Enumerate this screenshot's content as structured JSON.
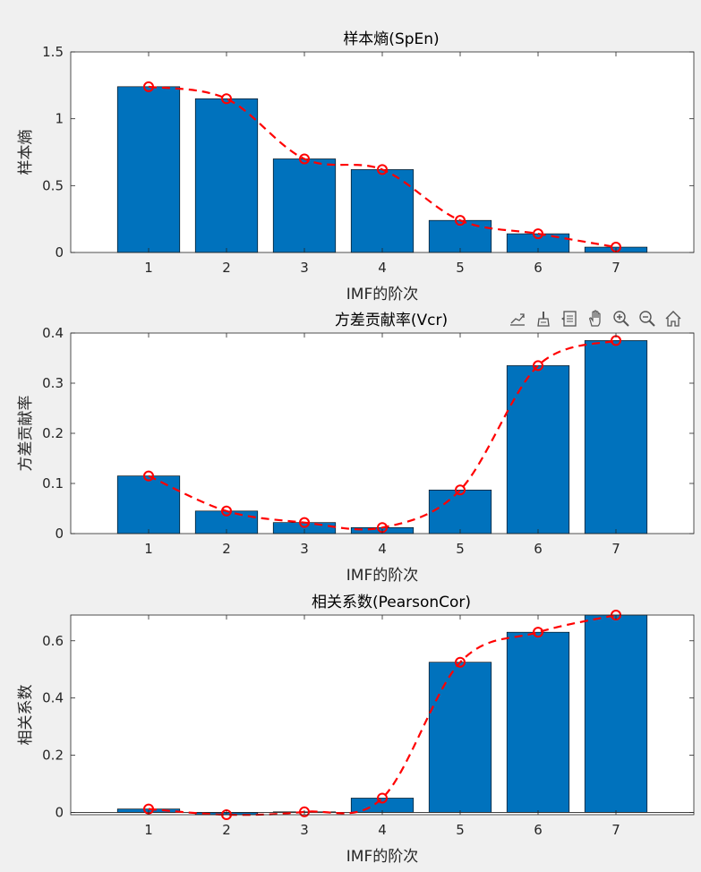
{
  "xlabel": "IMF的阶次",
  "colors": {
    "bar": "#0072BD",
    "line": "#FF0000",
    "background": "#F0F0F0",
    "axes": "#FFFFFF"
  },
  "toolbar": [
    "export-icon",
    "brush-icon",
    "datatip-icon",
    "pan-icon",
    "zoom-in-icon",
    "zoom-out-icon",
    "home-icon"
  ],
  "chart_data": [
    {
      "type": "bar",
      "title": "样本熵(SpEn)",
      "ylabel": "样本熵",
      "xlabel": "IMF的阶次",
      "categories": [
        "1",
        "2",
        "3",
        "4",
        "5",
        "6",
        "7"
      ],
      "values": [
        1.24,
        1.15,
        0.7,
        0.62,
        0.24,
        0.14,
        0.04
      ],
      "line_values": [
        1.24,
        1.15,
        0.7,
        0.62,
        0.24,
        0.14,
        0.04
      ],
      "xlim": [
        0,
        8
      ],
      "ylim": [
        0,
        1.5
      ],
      "yticks": [
        0,
        0.5,
        1,
        1.5
      ],
      "ytick_labels": [
        "0",
        "0.5",
        "1",
        "1.5"
      ]
    },
    {
      "type": "bar",
      "title": "方差贡献率(Vcr)",
      "ylabel": "方差贡献率",
      "xlabel": "IMF的阶次",
      "categories": [
        "1",
        "2",
        "3",
        "4",
        "5",
        "6",
        "7"
      ],
      "values": [
        0.115,
        0.045,
        0.022,
        0.012,
        0.087,
        0.335,
        0.385
      ],
      "line_values": [
        0.115,
        0.045,
        0.022,
        0.012,
        0.087,
        0.335,
        0.385
      ],
      "xlim": [
        0,
        8
      ],
      "ylim": [
        0,
        0.4
      ],
      "yticks": [
        0,
        0.1,
        0.2,
        0.3,
        0.4
      ],
      "ytick_labels": [
        "0",
        "0.1",
        "0.2",
        "0.3",
        "0.4"
      ]
    },
    {
      "type": "bar",
      "title": "相关系数(PearsonCor)",
      "ylabel": "相关系数",
      "xlabel": "IMF的阶次",
      "categories": [
        "1",
        "2",
        "3",
        "4",
        "5",
        "6",
        "7"
      ],
      "values": [
        0.012,
        -0.008,
        0.002,
        0.05,
        0.525,
        0.63,
        0.69
      ],
      "line_values": [
        0.012,
        -0.008,
        0.002,
        0.05,
        0.525,
        0.63,
        0.69
      ],
      "xlim": [
        0,
        8
      ],
      "ylim": [
        -0.008,
        0.69
      ],
      "yticks": [
        0,
        0.2,
        0.4,
        0.6
      ],
      "ytick_labels": [
        "0",
        "0.2",
        "0.4",
        "0.6"
      ]
    }
  ]
}
